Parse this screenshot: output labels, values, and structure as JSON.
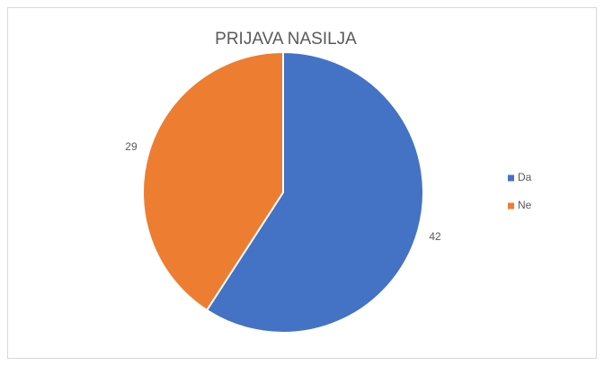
{
  "chart_data": {
    "type": "pie",
    "title": "PRIJAVA NASILJA",
    "categories": [
      "Da",
      "Ne"
    ],
    "values": [
      42,
      29
    ],
    "colors": [
      "#4472c4",
      "#ed7d31"
    ],
    "legend": "right"
  }
}
